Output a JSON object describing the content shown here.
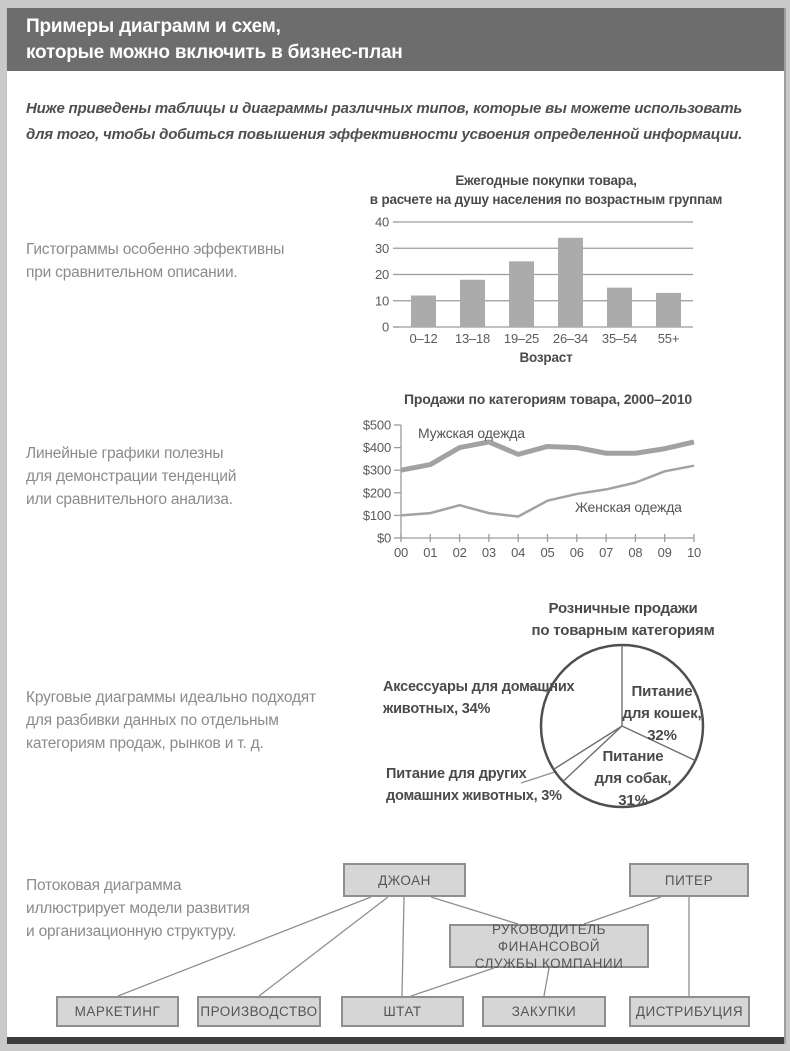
{
  "header": {
    "line1": "Примеры диаграмм и схем,",
    "line2": "которые можно включить в бизнес-план"
  },
  "intro": "Ниже приведены таблицы и диаграммы различных типов, которые вы можете использовать для того, чтобы добиться повышения эффективности усвоения определенной информации.",
  "notes": {
    "histogram": "Гистограммы особенно эффективны\nпри сравнительном описании.",
    "line": "Линейные графики полезны\nдля демонстрации тенденций\nили сравнительного анализа.",
    "pie": "Круговые диаграммы идеально подходят\nдля разбивки данных по отдельным\nкатегориям продаж, рынков и т. д.",
    "flow": "Потоковая диаграмма\nиллюстрирует модели развития\nи организационную структуру."
  },
  "pie_display_labels": {
    "cats": "Питание\nдля кошек,\n32%",
    "dogs": "Питание\nдля собак,\n31%",
    "accessories": "Аксессуары для домашних\nживотных, 34%",
    "other": "Питание для других\nдомашних животных, 3%"
  },
  "colors": {
    "header_bg": "#6d6d6d",
    "bar_fill": "#ababab",
    "axis_gray": "#9c9c9c",
    "line_stroke": "#a2a2a2",
    "pie_outline": "#4f4f4f",
    "node_fill": "#d6d6d6",
    "node_border": "#8f8f8f",
    "bottom_bar": "#3c3c3c"
  },
  "chart_data": [
    {
      "type": "bar",
      "title": "Ежегодные покупки товара,\nв расчете на душу населения по возрастным группам",
      "categories": [
        "0–12",
        "13–18",
        "19–25",
        "26–34",
        "35–54",
        "55+"
      ],
      "values": [
        12,
        18,
        25,
        34,
        15,
        13
      ],
      "xlabel": "Возраст",
      "ylabel": "",
      "ylim": [
        0,
        40
      ],
      "yticks": [
        0,
        10,
        20,
        30,
        40
      ],
      "grid": true,
      "legend": "none"
    },
    {
      "type": "line",
      "title": "Продажи по категориям товара, 2000–2010",
      "x": [
        "00",
        "01",
        "02",
        "03",
        "04",
        "05",
        "06",
        "07",
        "08",
        "09",
        "10"
      ],
      "series": [
        {
          "name": "Мужская одежда",
          "values": [
            300,
            325,
            400,
            425,
            370,
            405,
            400,
            375,
            375,
            395,
            425
          ]
        },
        {
          "name": "Женская одежда",
          "values": [
            100,
            110,
            145,
            110,
            95,
            165,
            195,
            215,
            245,
            295,
            320
          ]
        }
      ],
      "xlabel": "",
      "ylabel": "",
      "ylim": [
        0,
        500
      ],
      "yticks": [
        0,
        100,
        200,
        300,
        400,
        500
      ],
      "ytick_prefix": "$",
      "grid": false,
      "legend": "inline-labels"
    },
    {
      "type": "pie",
      "title": "Розничные продажи\nпо товарным категориям",
      "slices": [
        {
          "label": "Питание для кошек",
          "pct": 32
        },
        {
          "label": "Питание для собак",
          "pct": 31
        },
        {
          "label": "Питание для других домашних животных",
          "pct": 3
        },
        {
          "label": "Аксессуары для домашних животных",
          "pct": 34
        }
      ],
      "start": "top",
      "direction": "clockwise"
    },
    {
      "type": "diagram",
      "nodes": {
        "joan": "ДЖОАН",
        "piter": "ПИТЕР",
        "fin": "РУКОВОДИТЕЛЬ ФИНАНСОВОЙ\nСЛУЖБЫ КОМПАНИИ",
        "marketing": "МАРКЕТИНГ",
        "production": "ПРОИЗВОДСТВО",
        "staff": "ШТАТ",
        "purchasing": "ЗАКУПКИ",
        "distribution": "ДИСТРИБУЦИЯ"
      },
      "edges": [
        [
          "joan",
          "marketing"
        ],
        [
          "joan",
          "production"
        ],
        [
          "joan",
          "staff"
        ],
        [
          "joan",
          "fin"
        ],
        [
          "piter",
          "fin"
        ],
        [
          "piter",
          "distribution"
        ],
        [
          "fin",
          "staff"
        ],
        [
          "fin",
          "purchasing"
        ]
      ]
    }
  ]
}
